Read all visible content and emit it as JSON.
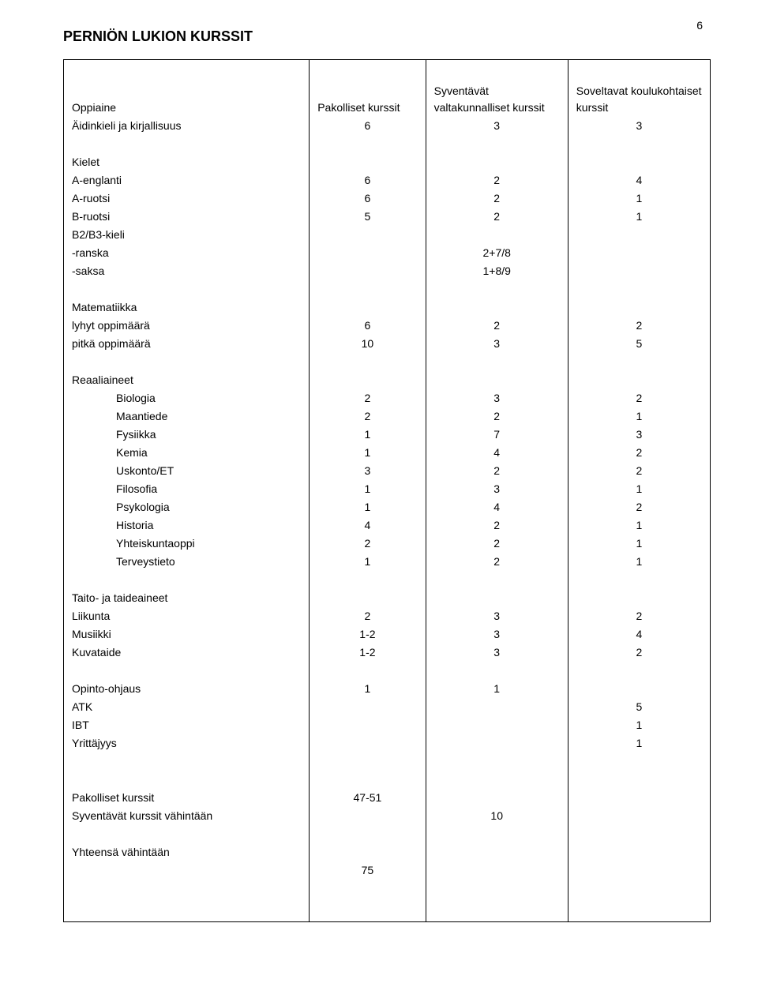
{
  "page_number": "6",
  "title": "PERNIÖN LUKION KURSSIT",
  "headers": {
    "subject": "Oppiaine",
    "mandatory": "Pakolliset kurssit",
    "advanced": "Syventävät valtakunnalliset kurssit",
    "applied": "Soveltavat koulukohtaiset kurssit"
  },
  "rows": [
    {
      "label": "Äidinkieli ja kirjallisuus",
      "a": "6",
      "b": "3",
      "c": "3"
    },
    {
      "blank": true
    },
    {
      "label": "Kielet"
    },
    {
      "label": "A-englanti",
      "a": "6",
      "b": "2",
      "c": "4"
    },
    {
      "label": "A-ruotsi",
      "a": "6",
      "b": "2",
      "c": "1"
    },
    {
      "label": "B-ruotsi",
      "a": "5",
      "b": "2",
      "c": "1"
    },
    {
      "label": "B2/B3-kieli"
    },
    {
      "label": "-ranska",
      "b": "2+7/8"
    },
    {
      "label": "-saksa",
      "b": "1+8/9"
    },
    {
      "blank": true
    },
    {
      "label": "Matematiikka"
    },
    {
      "label": "lyhyt oppimäärä",
      "a": "6",
      "b": "2",
      "c": "2"
    },
    {
      "label": "pitkä oppimäärä",
      "a": "10",
      "b": "3",
      "c": "5"
    },
    {
      "blank": true
    },
    {
      "label": "Reaaliaineet"
    },
    {
      "label": "Biologia",
      "indent": true,
      "a": "2",
      "b": "3",
      "c": "2"
    },
    {
      "label": "Maantiede",
      "indent": true,
      "a": "2",
      "b": "2",
      "c": "1"
    },
    {
      "label": "Fysiikka",
      "indent": true,
      "a": "1",
      "b": "7",
      "c": "3"
    },
    {
      "label": "Kemia",
      "indent": true,
      "a": "1",
      "b": "4",
      "c": "2"
    },
    {
      "label": "Uskonto/ET",
      "indent": true,
      "a": "3",
      "b": "2",
      "c": "2"
    },
    {
      "label": "Filosofia",
      "indent": true,
      "a": "1",
      "b": "3",
      "c": "1"
    },
    {
      "label": "Psykologia",
      "indent": true,
      "a": "1",
      "b": "4",
      "c": "2"
    },
    {
      "label": "Historia",
      "indent": true,
      "a": "4",
      "b": "2",
      "c": "1"
    },
    {
      "label": "Yhteiskuntaoppi",
      "indent": true,
      "a": "2",
      "b": "2",
      "c": "1"
    },
    {
      "label": "Terveystieto",
      "indent": true,
      "a": "1",
      "b": "2",
      "c": "1"
    },
    {
      "blank": true
    },
    {
      "label": "Taito- ja taideaineet"
    },
    {
      "label": "Liikunta",
      "a": "2",
      "b": "3",
      "c": "2"
    },
    {
      "label": "Musiikki",
      "a": "1-2",
      "b": "3",
      "c": "4"
    },
    {
      "label": "Kuvataide",
      "a": "1-2",
      "b": "3",
      "c": "2"
    },
    {
      "blank": true
    },
    {
      "label": "Opinto-ohjaus",
      "a": "1",
      "b": "1"
    },
    {
      "label": "ATK",
      "c": "5"
    },
    {
      "label": "IBT",
      "c": "1"
    },
    {
      "label": "Yrittäjyys",
      "c": "1"
    },
    {
      "blank": true
    },
    {
      "blank": true
    },
    {
      "label": "Pakolliset kurssit",
      "a": "47-51"
    },
    {
      "label": "Syventävät kurssit vähintään",
      "b": "10"
    },
    {
      "blank": true
    },
    {
      "label": "Yhteensä vähintään"
    },
    {
      "a": "75"
    },
    {
      "blank": true
    },
    {
      "blank": true
    }
  ]
}
